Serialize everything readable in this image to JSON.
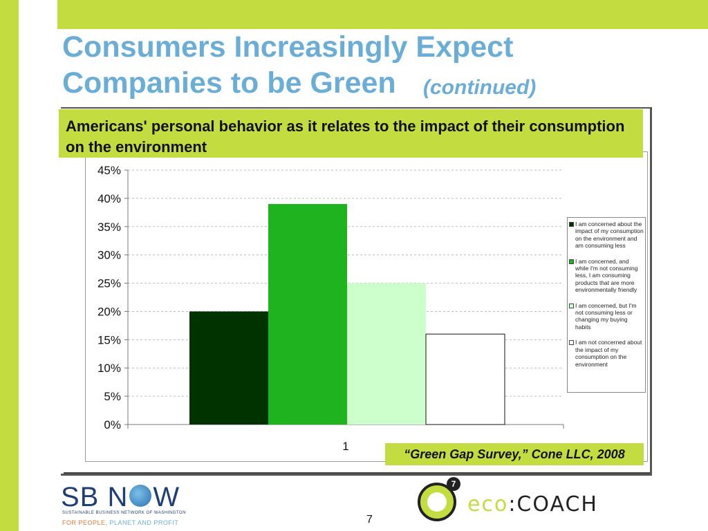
{
  "slide": {
    "title_main": "Consumers Increasingly Expect Companies to be Green",
    "title_suffix": "(continued)",
    "subtitle": "Americans' personal behavior as it relates to the impact of their consumption on the environment",
    "source": "“Green Gap Survey,” Cone LLC, 2008",
    "page_number": "7"
  },
  "branding": {
    "sbnow_name": "SB N  W",
    "sbnow_subtitle": "SUSTAINABLE BUSINESS NETWORK OF WASHINGTON",
    "sbnow_tag_a": "FOR PEOPLE,",
    "sbnow_tag_b": "PLANET AND PROFIT",
    "eco_badge": "7",
    "eco_word": "eco",
    "eco_colon": ":",
    "eco_coach": "COACH"
  },
  "chart_data": {
    "type": "bar",
    "categories": [
      "1"
    ],
    "series": [
      {
        "name": "I am concerned about the impact of my consumption on the environment and am consuming less",
        "values": [
          20
        ],
        "color": "#003300"
      },
      {
        "name": "I am concerned, and while I'm not consuming less, I am consuming products that are more environmentally friendly",
        "values": [
          39
        ],
        "color": "#1fb31f"
      },
      {
        "name": "I am concerned, but I'm not consuming less or changing my buying habits",
        "values": [
          25
        ],
        "color": "#ccffcc"
      },
      {
        "name": "I am not concerned about the impact of my consumption on the environment",
        "values": [
          16
        ],
        "color": "#ffffff"
      }
    ],
    "yticks": [
      "0%",
      "5%",
      "10%",
      "15%",
      "20%",
      "25%",
      "30%",
      "35%",
      "40%",
      "45%"
    ],
    "ylim": [
      0,
      45
    ],
    "grid": true,
    "legend": "right"
  }
}
